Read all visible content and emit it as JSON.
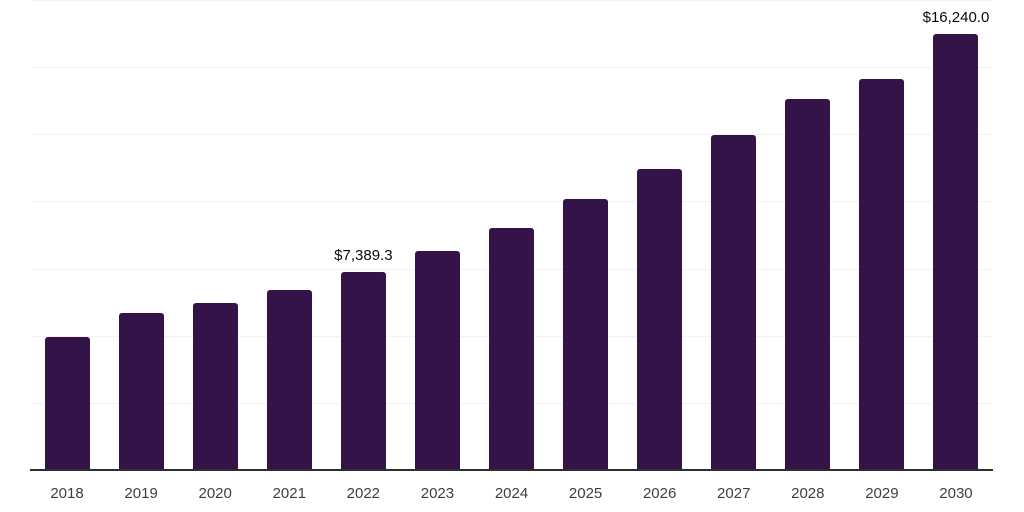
{
  "chart_data": {
    "type": "bar",
    "title": "",
    "xlabel": "",
    "ylabel": "",
    "categories": [
      "2018",
      "2019",
      "2020",
      "2021",
      "2022",
      "2023",
      "2024",
      "2025",
      "2026",
      "2027",
      "2028",
      "2029",
      "2030"
    ],
    "values": [
      4960,
      5860,
      6215,
      6720,
      7389.3,
      8160,
      9020,
      10090,
      11200,
      12475,
      13830,
      14570,
      16240
    ],
    "data_labels": [
      null,
      null,
      null,
      null,
      "$7,389.3",
      null,
      null,
      null,
      null,
      null,
      null,
      null,
      "$16,240.0"
    ],
    "values_note": "only 2022 and 2030 carry visible labels; other values estimated from bar heights",
    "ylim": [
      0,
      17500
    ],
    "gridlines_y": [
      2500,
      5000,
      7500,
      10000,
      12500,
      15000,
      17500
    ],
    "grid": "horizontal-only, no y tick labels, no legend",
    "colors": {
      "bar": "#341448",
      "axis_line": "#2e2e2e",
      "gridline": "#f2f2f2",
      "tick_label": "#3f3f3f",
      "value_label": "#0a0a0a",
      "background": "#ffffff"
    }
  }
}
